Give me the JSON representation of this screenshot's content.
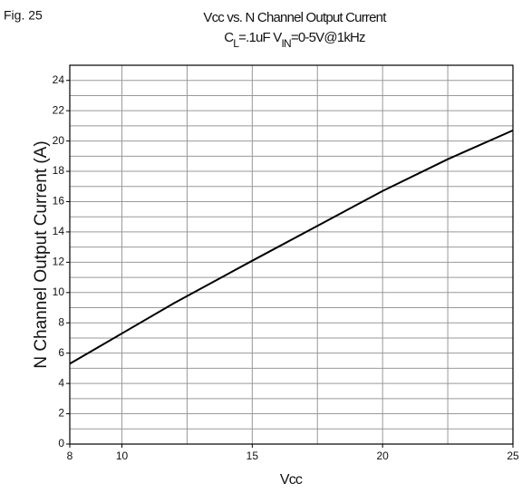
{
  "chart_data": {
    "type": "line",
    "annotation": "Fig. 25",
    "title": "Vcc vs. N Channel Output Current",
    "subtitle": [
      {
        "text": "C"
      },
      {
        "text": "L",
        "sub": true
      },
      {
        "text": "=.1uF  V"
      },
      {
        "text": "IN",
        "sub": true
      },
      {
        "text": "=0-5V@1kHz"
      }
    ],
    "x_label": "Vcc",
    "y_label": "N Channel Output Current (A)",
    "x": [
      8,
      10,
      12,
      15,
      17.5,
      20,
      22.5,
      25
    ],
    "series": [
      {
        "name": "N Channel Output Current",
        "color": "#000000",
        "values": [
          5.3,
          7.3,
          9.3,
          12.1,
          14.4,
          16.7,
          18.8,
          20.7
        ]
      }
    ],
    "xlim": [
      8,
      25
    ],
    "ylim": [
      0,
      25
    ],
    "xticks": [
      8,
      10,
      15,
      20,
      25
    ],
    "yticks": [
      0,
      2,
      4,
      6,
      8,
      10,
      12,
      14,
      16,
      18,
      20,
      22,
      24
    ],
    "xgrid": [
      10,
      12.5,
      15,
      17.5,
      20,
      22.5
    ],
    "ygrid": [
      1,
      2,
      3,
      4,
      5,
      6,
      7,
      8,
      9,
      10,
      11,
      12,
      13,
      14,
      15,
      16,
      17,
      18,
      19,
      20,
      21,
      22,
      23,
      24
    ],
    "grid": true
  }
}
